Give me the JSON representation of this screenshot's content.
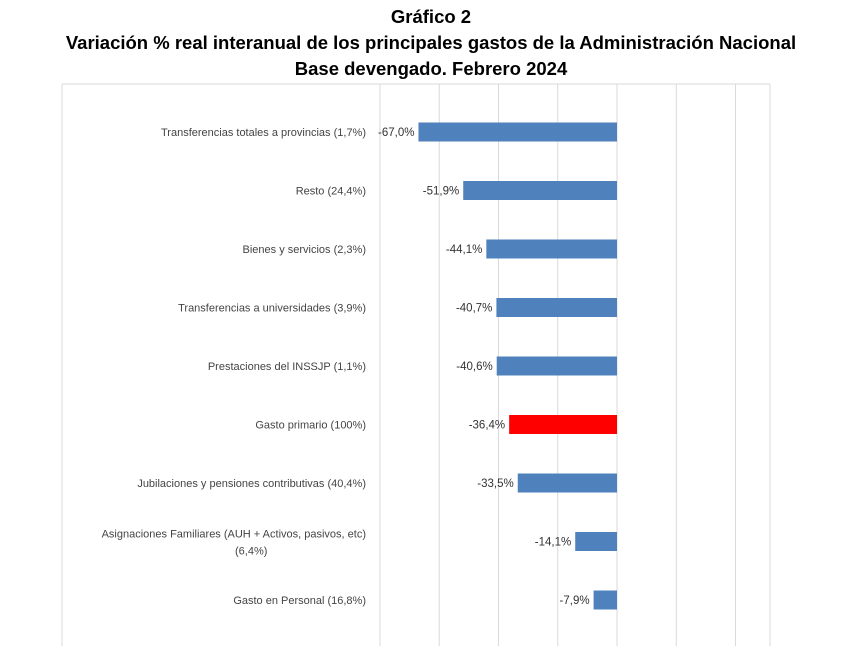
{
  "chart_data": {
    "type": "bar",
    "orientation": "horizontal",
    "title": "Gráfico 2",
    "subtitle": "Variación % real interanual de los principales gastos de la Administración Nacional",
    "subtitle2": "Base devengado. Febrero 2024",
    "categories": [
      "Transferencias totales a provincias (1,7%)",
      "Resto (24,4%)",
      "Bienes y servicios (2,3%)",
      "Transferencias a universidades (3,9%)",
      "Prestaciones del INSSJP (1,1%)",
      "Gasto primario (100%)",
      "Jubilaciones y pensiones contributivas (40,4%)",
      "Asignaciones Familiares (AUH + Activos, pasivos, etc) (6,4%)",
      "Gasto en Personal (16,8%)"
    ],
    "values": [
      -67.0,
      -51.9,
      -44.1,
      -40.7,
      -40.6,
      -36.4,
      -33.5,
      -14.1,
      -7.9
    ],
    "labels": [
      "-67,0%",
      "-51,9%",
      "-44,1%",
      "-40,7%",
      "-40,6%",
      "-36,4%",
      "-33,5%",
      "-14,1%",
      "-7,9%"
    ],
    "highlight_index": 5,
    "xlim": [
      -80,
      40
    ],
    "grid": true,
    "colors": {
      "bar": "#4f81bd",
      "highlight": "#ff0000",
      "grid": "#d9d9d9",
      "text": "#444444"
    }
  }
}
